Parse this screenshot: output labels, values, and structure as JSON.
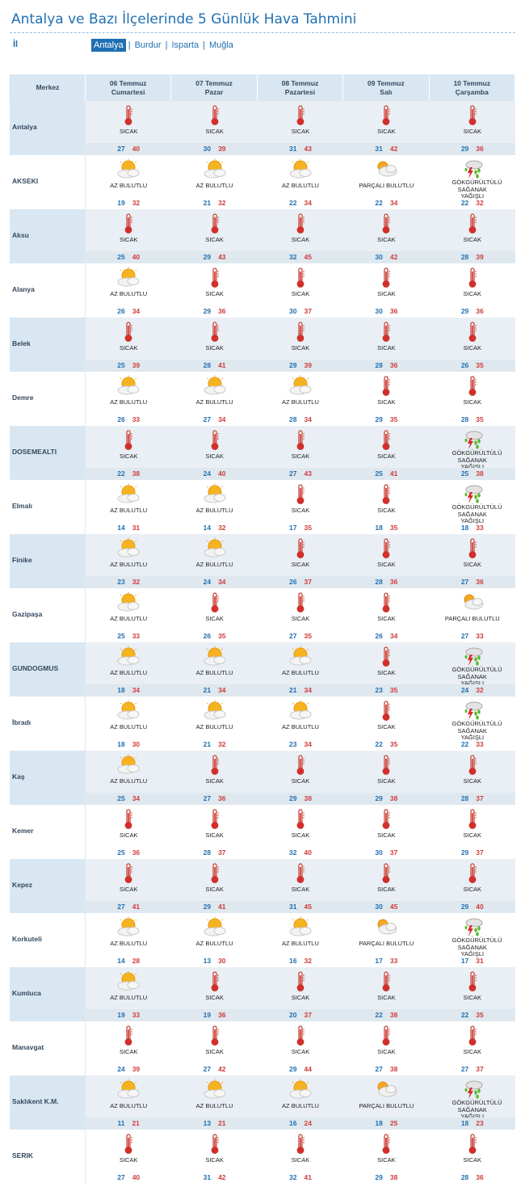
{
  "header": {
    "title": "Antalya ve Bazı İlçelerinde 5 Günlük Hava Tahmini",
    "il_label": "İl",
    "provinces": [
      "Antalya",
      "Burdur",
      "Isparta",
      "Muğla"
    ],
    "active_province": "Antalya"
  },
  "table": {
    "merkez_label": "Merkez",
    "days": [
      {
        "date": "06 Temmuz",
        "weekday": "Cumartesi"
      },
      {
        "date": "07 Temmuz",
        "weekday": "Pazar"
      },
      {
        "date": "08 Temmuz",
        "weekday": "Pazartesi"
      },
      {
        "date": "09 Temmuz",
        "weekday": "Salı"
      },
      {
        "date": "10 Temmuz",
        "weekday": "Çarşamba"
      }
    ],
    "icons": {
      "SICAK": "thermometer-icon",
      "AZ BULUTLU": "sun-cloud-icon",
      "PARÇALI BULUTLU": "partly-cloudy-icon",
      "GÖKGÜRÜLTÜLÜ SAĞANAK YAĞIŞLI": "thunderstorm-icon"
    },
    "rows": [
      {
        "city": "Antalya",
        "days": [
          {
            "cond": "SICAK",
            "min": "27",
            "max": "40"
          },
          {
            "cond": "SICAK",
            "min": "30",
            "max": "39"
          },
          {
            "cond": "SICAK",
            "min": "31",
            "max": "43"
          },
          {
            "cond": "SICAK",
            "min": "31",
            "max": "42"
          },
          {
            "cond": "SICAK",
            "min": "29",
            "max": "36"
          }
        ]
      },
      {
        "city": "AKSEKI",
        "days": [
          {
            "cond": "AZ BULUTLU",
            "min": "19",
            "max": "32"
          },
          {
            "cond": "AZ BULUTLU",
            "min": "21",
            "max": "32"
          },
          {
            "cond": "AZ BULUTLU",
            "min": "22",
            "max": "34"
          },
          {
            "cond": "PARÇALI BULUTLU",
            "min": "22",
            "max": "34"
          },
          {
            "cond": "GÖKGÜRÜLTÜLÜ SAĞANAK YAĞIŞLI",
            "min": "22",
            "max": "32"
          }
        ]
      },
      {
        "city": "Aksu",
        "days": [
          {
            "cond": "SICAK",
            "min": "25",
            "max": "40"
          },
          {
            "cond": "SICAK",
            "min": "29",
            "max": "43"
          },
          {
            "cond": "SICAK",
            "min": "32",
            "max": "45"
          },
          {
            "cond": "SICAK",
            "min": "30",
            "max": "42"
          },
          {
            "cond": "SICAK",
            "min": "28",
            "max": "39"
          }
        ]
      },
      {
        "city": "Alanya",
        "days": [
          {
            "cond": "AZ BULUTLU",
            "min": "26",
            "max": "34"
          },
          {
            "cond": "SICAK",
            "min": "29",
            "max": "36"
          },
          {
            "cond": "SICAK",
            "min": "30",
            "max": "37"
          },
          {
            "cond": "SICAK",
            "min": "30",
            "max": "36"
          },
          {
            "cond": "SICAK",
            "min": "29",
            "max": "36"
          }
        ]
      },
      {
        "city": "Belek",
        "days": [
          {
            "cond": "SICAK",
            "min": "25",
            "max": "39"
          },
          {
            "cond": "SICAK",
            "min": "28",
            "max": "41"
          },
          {
            "cond": "SICAK",
            "min": "29",
            "max": "39"
          },
          {
            "cond": "SICAK",
            "min": "28",
            "max": "36"
          },
          {
            "cond": "SICAK",
            "min": "26",
            "max": "35"
          }
        ]
      },
      {
        "city": "Demre",
        "days": [
          {
            "cond": "AZ BULUTLU",
            "min": "26",
            "max": "33"
          },
          {
            "cond": "AZ BULUTLU",
            "min": "27",
            "max": "34"
          },
          {
            "cond": "AZ BULUTLU",
            "min": "28",
            "max": "34"
          },
          {
            "cond": "SICAK",
            "min": "29",
            "max": "35"
          },
          {
            "cond": "SICAK",
            "min": "28",
            "max": "35"
          }
        ]
      },
      {
        "city": "DOSEMEALTI",
        "days": [
          {
            "cond": "SICAK",
            "min": "22",
            "max": "38"
          },
          {
            "cond": "SICAK",
            "min": "24",
            "max": "40"
          },
          {
            "cond": "SICAK",
            "min": "27",
            "max": "43"
          },
          {
            "cond": "SICAK",
            "min": "25",
            "max": "41"
          },
          {
            "cond": "GÖKGÜRÜLTÜLÜ SAĞANAK YAĞIŞLI",
            "min": "25",
            "max": "38"
          }
        ]
      },
      {
        "city": "Elmalı",
        "days": [
          {
            "cond": "AZ BULUTLU",
            "min": "14",
            "max": "31"
          },
          {
            "cond": "AZ BULUTLU",
            "min": "14",
            "max": "32"
          },
          {
            "cond": "SICAK",
            "min": "17",
            "max": "35"
          },
          {
            "cond": "SICAK",
            "min": "18",
            "max": "35"
          },
          {
            "cond": "GÖKGÜRÜLTÜLÜ SAĞANAK YAĞIŞLI",
            "min": "18",
            "max": "33"
          }
        ]
      },
      {
        "city": "Finike",
        "days": [
          {
            "cond": "AZ BULUTLU",
            "min": "23",
            "max": "32"
          },
          {
            "cond": "AZ BULUTLU",
            "min": "24",
            "max": "34"
          },
          {
            "cond": "SICAK",
            "min": "26",
            "max": "37"
          },
          {
            "cond": "SICAK",
            "min": "28",
            "max": "36"
          },
          {
            "cond": "SICAK",
            "min": "27",
            "max": "36"
          }
        ]
      },
      {
        "city": "Gazipaşa",
        "days": [
          {
            "cond": "AZ BULUTLU",
            "min": "25",
            "max": "33"
          },
          {
            "cond": "SICAK",
            "min": "26",
            "max": "35"
          },
          {
            "cond": "SICAK",
            "min": "27",
            "max": "35"
          },
          {
            "cond": "SICAK",
            "min": "26",
            "max": "34"
          },
          {
            "cond": "PARÇALI BULUTLU",
            "min": "27",
            "max": "33"
          }
        ]
      },
      {
        "city": "GUNDOGMUS",
        "days": [
          {
            "cond": "AZ BULUTLU",
            "min": "18",
            "max": "34"
          },
          {
            "cond": "AZ BULUTLU",
            "min": "21",
            "max": "34"
          },
          {
            "cond": "AZ BULUTLU",
            "min": "21",
            "max": "34"
          },
          {
            "cond": "SICAK",
            "min": "23",
            "max": "35"
          },
          {
            "cond": "GÖKGÜRÜLTÜLÜ SAĞANAK YAĞIŞLI",
            "min": "24",
            "max": "32"
          }
        ]
      },
      {
        "city": "İbradı",
        "days": [
          {
            "cond": "AZ BULUTLU",
            "min": "18",
            "max": "30"
          },
          {
            "cond": "AZ BULUTLU",
            "min": "21",
            "max": "32"
          },
          {
            "cond": "AZ BULUTLU",
            "min": "23",
            "max": "34"
          },
          {
            "cond": "SICAK",
            "min": "22",
            "max": "35"
          },
          {
            "cond": "GÖKGÜRÜLTÜLÜ SAĞANAK YAĞIŞLI",
            "min": "22",
            "max": "33"
          }
        ]
      },
      {
        "city": "Kaş",
        "days": [
          {
            "cond": "AZ BULUTLU",
            "min": "25",
            "max": "34"
          },
          {
            "cond": "SICAK",
            "min": "27",
            "max": "36"
          },
          {
            "cond": "SICAK",
            "min": "29",
            "max": "38"
          },
          {
            "cond": "SICAK",
            "min": "29",
            "max": "38"
          },
          {
            "cond": "SICAK",
            "min": "28",
            "max": "37"
          }
        ]
      },
      {
        "city": "Kemer",
        "days": [
          {
            "cond": "SICAK",
            "min": "25",
            "max": "36"
          },
          {
            "cond": "SICAK",
            "min": "28",
            "max": "37"
          },
          {
            "cond": "SICAK",
            "min": "32",
            "max": "40"
          },
          {
            "cond": "SICAK",
            "min": "30",
            "max": "37"
          },
          {
            "cond": "SICAK",
            "min": "29",
            "max": "37"
          }
        ]
      },
      {
        "city": "Kepez",
        "days": [
          {
            "cond": "SICAK",
            "min": "27",
            "max": "41"
          },
          {
            "cond": "SICAK",
            "min": "29",
            "max": "41"
          },
          {
            "cond": "SICAK",
            "min": "31",
            "max": "45"
          },
          {
            "cond": "SICAK",
            "min": "30",
            "max": "45"
          },
          {
            "cond": "SICAK",
            "min": "29",
            "max": "40"
          }
        ]
      },
      {
        "city": "Korkuteli",
        "days": [
          {
            "cond": "AZ BULUTLU",
            "min": "14",
            "max": "28"
          },
          {
            "cond": "AZ BULUTLU",
            "min": "13",
            "max": "30"
          },
          {
            "cond": "AZ BULUTLU",
            "min": "16",
            "max": "32"
          },
          {
            "cond": "PARÇALI BULUTLU",
            "min": "17",
            "max": "33"
          },
          {
            "cond": "GÖKGÜRÜLTÜLÜ SAĞANAK YAĞIŞLI",
            "min": "17",
            "max": "31"
          }
        ]
      },
      {
        "city": "Kumluca",
        "days": [
          {
            "cond": "AZ BULUTLU",
            "min": "19",
            "max": "33"
          },
          {
            "cond": "SICAK",
            "min": "19",
            "max": "36"
          },
          {
            "cond": "SICAK",
            "min": "20",
            "max": "37"
          },
          {
            "cond": "SICAK",
            "min": "22",
            "max": "38"
          },
          {
            "cond": "SICAK",
            "min": "22",
            "max": "35"
          }
        ]
      },
      {
        "city": "Manavgat",
        "days": [
          {
            "cond": "SICAK",
            "min": "24",
            "max": "39"
          },
          {
            "cond": "SICAK",
            "min": "27",
            "max": "42"
          },
          {
            "cond": "SICAK",
            "min": "29",
            "max": "44"
          },
          {
            "cond": "SICAK",
            "min": "27",
            "max": "38"
          },
          {
            "cond": "SICAK",
            "min": "27",
            "max": "37"
          }
        ]
      },
      {
        "city": "Saklıkent K.M.",
        "days": [
          {
            "cond": "AZ BULUTLU",
            "min": "11",
            "max": "21"
          },
          {
            "cond": "AZ BULUTLU",
            "min": "13",
            "max": "21"
          },
          {
            "cond": "AZ BULUTLU",
            "min": "16",
            "max": "24"
          },
          {
            "cond": "PARÇALI BULUTLU",
            "min": "18",
            "max": "25"
          },
          {
            "cond": "GÖKGÜRÜLTÜLÜ SAĞANAK YAĞIŞLI",
            "min": "18",
            "max": "23"
          }
        ]
      },
      {
        "city": "SERIK",
        "days": [
          {
            "cond": "SICAK",
            "min": "27",
            "max": "40"
          },
          {
            "cond": "SICAK",
            "min": "31",
            "max": "42"
          },
          {
            "cond": "SICAK",
            "min": "32",
            "max": "41"
          },
          {
            "cond": "SICAK",
            "min": "29",
            "max": "38"
          },
          {
            "cond": "SICAK",
            "min": "28",
            "max": "36"
          }
        ]
      }
    ]
  }
}
